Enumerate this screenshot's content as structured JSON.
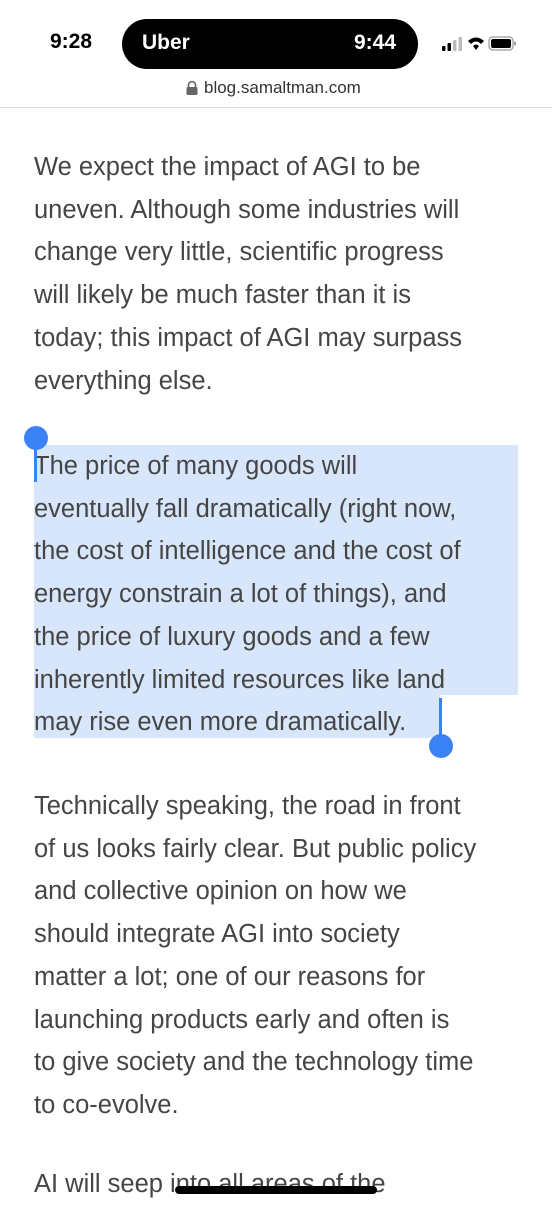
{
  "status_bar": {
    "time": "9:28",
    "activity": {
      "app": "Uber",
      "time": "9:44"
    }
  },
  "address_bar": {
    "url": "blog.samaltman.com"
  },
  "article": {
    "paragraphs": [
      [
        "We expect the impact of AGI to be",
        "uneven. Although some industries will",
        "change very little, scientific progress",
        "will likely be much faster than it is",
        "today; this impact of AGI may surpass",
        "everything else."
      ],
      [
        "The price of many goods will",
        "eventually fall dramatically (right now,",
        "the cost of intelligence and the cost of",
        "energy constrain a lot of things), and",
        "the price of luxury goods and a few",
        "inherently limited resources like land",
        "may rise even more dramatically."
      ],
      [
        "Technically speaking, the road in front",
        "of us looks fairly clear. But public policy",
        "and collective opinion on how we",
        "should integrate AGI into society",
        "matter a lot; one of our reasons for",
        "launching products early and often is",
        "to give society and the technology time",
        "to co-evolve."
      ],
      [
        "AI will seep into all areas of the"
      ]
    ]
  }
}
